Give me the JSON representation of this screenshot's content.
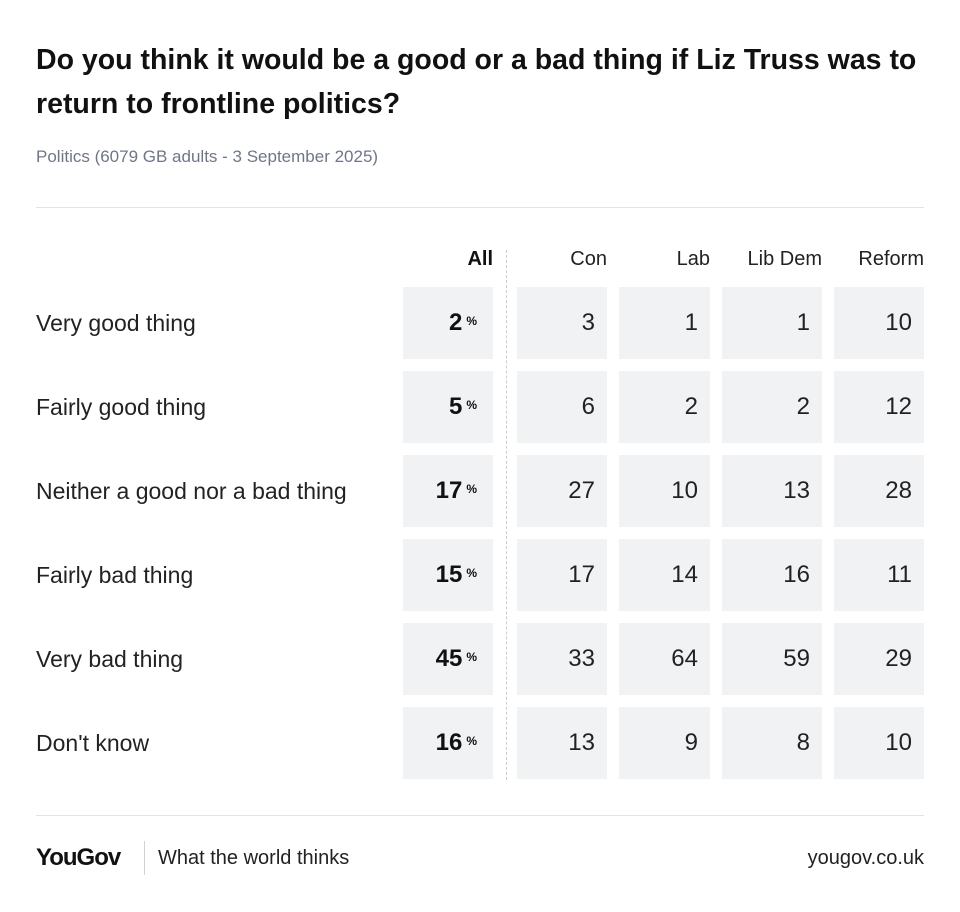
{
  "title": "Do you think it would be a good or a bad thing if Liz Truss was to return to frontline politics?",
  "subtitle": "Politics (6079 GB adults - 3 September 2025)",
  "colors": {
    "cell_bg": "#f1f2f4",
    "text": "#111111",
    "subtitle": "#6f7787",
    "rule": "#e2e4e8"
  },
  "chart_data": {
    "type": "table",
    "columns": [
      "All",
      "Con",
      "Lab",
      "Lib Dem",
      "Reform"
    ],
    "percent_sign": "%",
    "rows": [
      {
        "label": "Very good thing",
        "values": [
          2,
          3,
          1,
          1,
          10
        ]
      },
      {
        "label": "Fairly good thing",
        "values": [
          5,
          6,
          2,
          2,
          12
        ]
      },
      {
        "label": "Neither a good nor a bad thing",
        "values": [
          17,
          27,
          10,
          13,
          28
        ]
      },
      {
        "label": "Fairly bad thing",
        "values": [
          15,
          17,
          14,
          16,
          11
        ]
      },
      {
        "label": "Very bad thing",
        "values": [
          45,
          33,
          64,
          59,
          29
        ]
      },
      {
        "label": "Don't know",
        "values": [
          16,
          13,
          9,
          8,
          10
        ]
      }
    ]
  },
  "footer": {
    "logo": "YouGov",
    "tagline": "What the world thinks",
    "site": "yougov.co.uk"
  }
}
